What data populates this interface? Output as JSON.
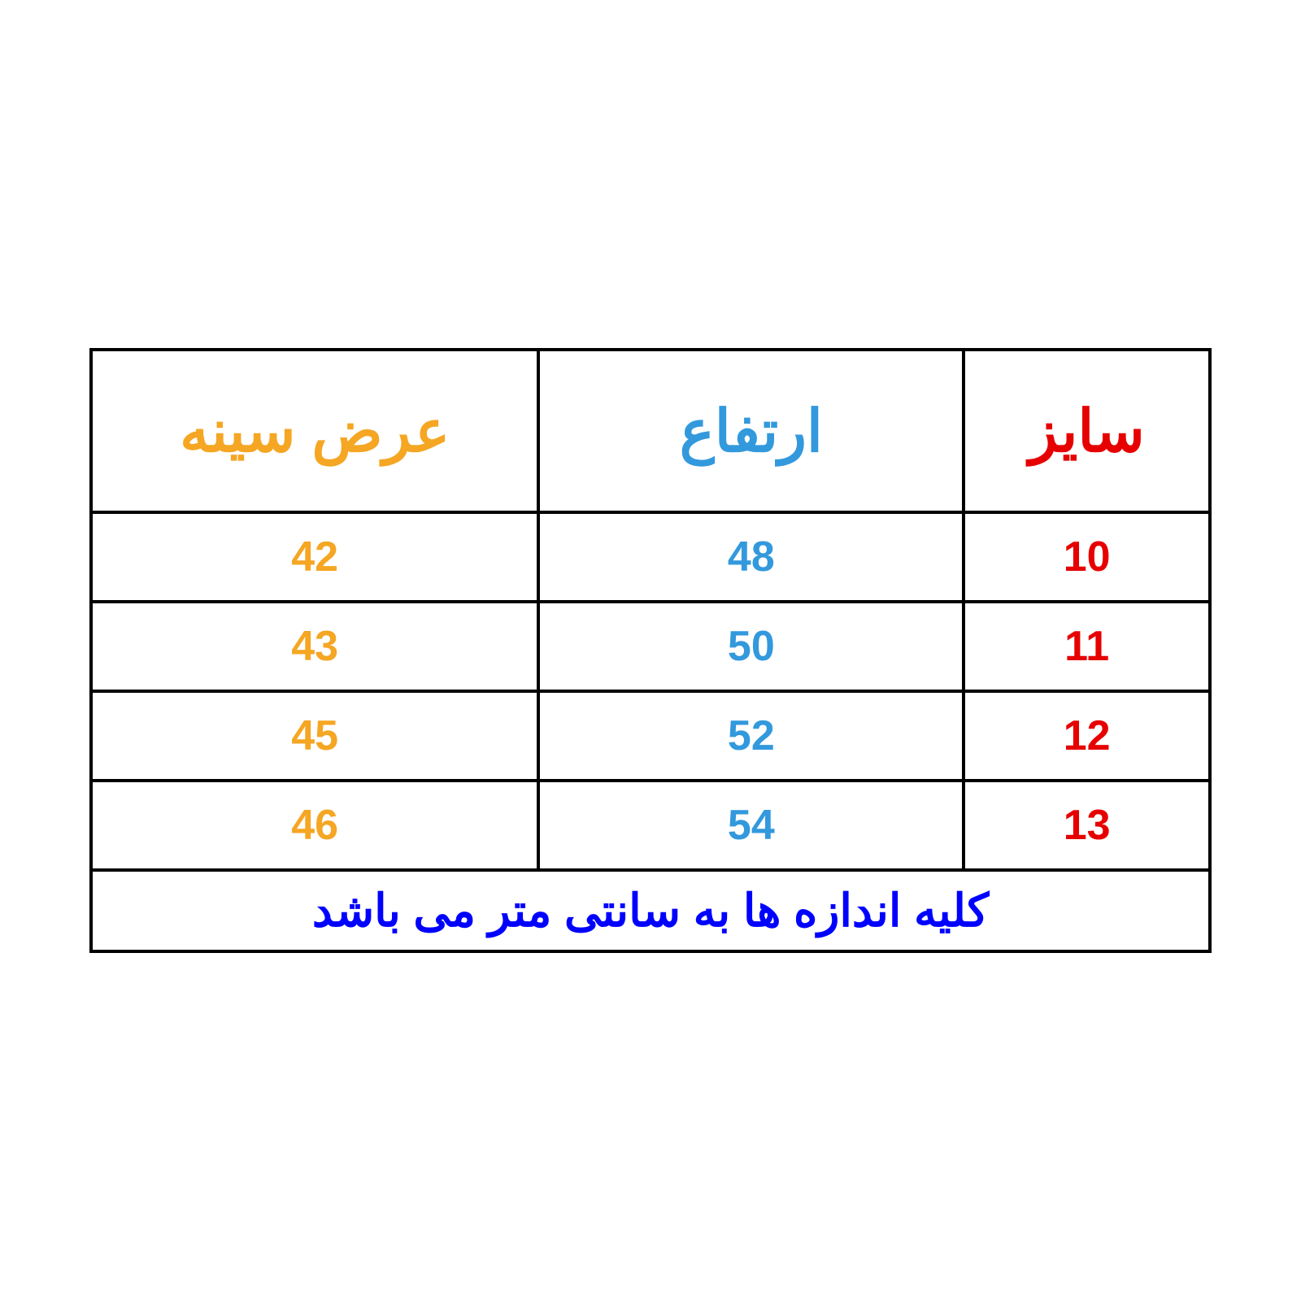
{
  "table": {
    "type": "table",
    "background_color": "#ffffff",
    "border_color": "#000000",
    "border_width": 4,
    "columns": [
      {
        "key": "chest",
        "label": "عرض سینه",
        "color": "#f5a623",
        "width_pct": 40
      },
      {
        "key": "height",
        "label": "ارتفاع",
        "color": "#3399dd",
        "width_pct": 38
      },
      {
        "key": "size",
        "label": "سایز",
        "color": "#e60000",
        "width_pct": 22
      }
    ],
    "header_fontsize": 72,
    "cell_fontsize": 52,
    "footer_fontsize": 56,
    "rows": [
      {
        "chest": "42",
        "height": "48",
        "size": "10"
      },
      {
        "chest": "43",
        "height": "50",
        "size": "11"
      },
      {
        "chest": "45",
        "height": "52",
        "size": "12"
      },
      {
        "chest": "46",
        "height": "54",
        "size": "13"
      }
    ],
    "footer_text": "کلیه اندازه ها به سانتی متر می باشد",
    "footer_color": "#0000ff"
  }
}
